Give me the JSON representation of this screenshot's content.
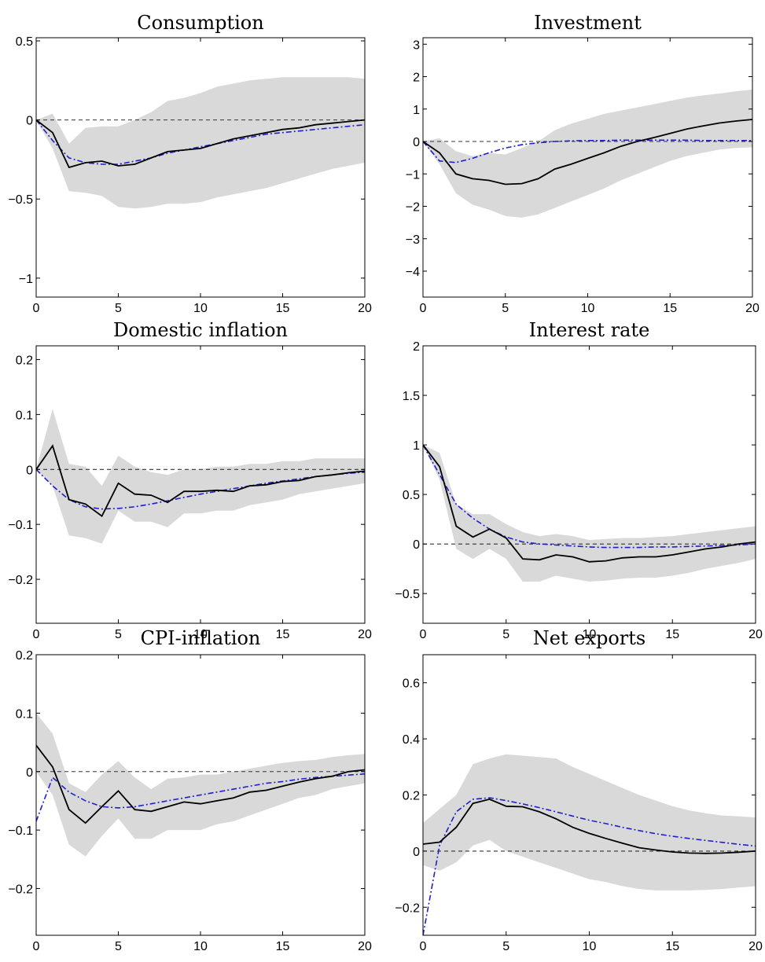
{
  "colors": {
    "band": "#d9d9d9",
    "median": "#000000",
    "model": "#1f1fcc",
    "zero_line": "#333333"
  },
  "chart_data": [
    {
      "type": "line",
      "title": "Consumption",
      "xlim": [
        0,
        20
      ],
      "ylim": [
        -1.12,
        0.52
      ],
      "xticks": [
        0,
        5,
        10,
        15,
        20
      ],
      "xtick_labels": [
        "0",
        "5",
        "10",
        "15",
        "20"
      ],
      "yticks": [
        0.5,
        0,
        -0.5,
        -1
      ],
      "ytick_labels": [
        "0.5",
        "0",
        "−0.5",
        "−1"
      ],
      "x": [
        0,
        1,
        2,
        3,
        4,
        5,
        6,
        7,
        8,
        9,
        10,
        11,
        12,
        13,
        14,
        15,
        16,
        17,
        18,
        19,
        20
      ],
      "band_lower": [
        0,
        -0.18,
        -0.45,
        -0.46,
        -0.48,
        -0.55,
        -0.56,
        -0.55,
        -0.53,
        -0.53,
        -0.52,
        -0.49,
        -0.47,
        -0.45,
        -0.43,
        -0.4,
        -0.37,
        -0.34,
        -0.31,
        -0.29,
        -0.27
      ],
      "band_upper": [
        0,
        0.04,
        -0.15,
        -0.05,
        -0.04,
        -0.04,
        0.0,
        0.05,
        0.12,
        0.14,
        0.17,
        0.21,
        0.23,
        0.25,
        0.26,
        0.27,
        0.27,
        0.27,
        0.27,
        0.27,
        0.26
      ],
      "median": [
        0,
        -0.08,
        -0.3,
        -0.27,
        -0.26,
        -0.29,
        -0.28,
        -0.24,
        -0.2,
        -0.19,
        -0.18,
        -0.15,
        -0.12,
        -0.1,
        -0.08,
        -0.06,
        -0.05,
        -0.03,
        -0.02,
        -0.01,
        0.0
      ],
      "model": [
        0,
        -0.13,
        -0.24,
        -0.27,
        -0.28,
        -0.28,
        -0.26,
        -0.24,
        -0.21,
        -0.19,
        -0.17,
        -0.15,
        -0.13,
        -0.11,
        -0.09,
        -0.08,
        -0.07,
        -0.06,
        -0.05,
        -0.04,
        -0.03
      ]
    },
    {
      "type": "line",
      "title": "Investment",
      "xlim": [
        0,
        20
      ],
      "ylim": [
        -4.8,
        3.2
      ],
      "xticks": [
        0,
        5,
        10,
        15,
        20
      ],
      "xtick_labels": [
        "0",
        "5",
        "10",
        "15",
        "20"
      ],
      "yticks": [
        3,
        2,
        1,
        0,
        -1,
        -2,
        -3,
        -4
      ],
      "ytick_labels": [
        "3",
        "2",
        "1",
        "0",
        "−1",
        "−2",
        "−3",
        "−4"
      ],
      "x": [
        0,
        1,
        2,
        3,
        4,
        5,
        6,
        7,
        8,
        9,
        10,
        11,
        12,
        13,
        14,
        15,
        16,
        17,
        18,
        19,
        20
      ],
      "band_lower": [
        0,
        -0.7,
        -1.6,
        -1.95,
        -2.1,
        -2.3,
        -2.35,
        -2.25,
        -2.05,
        -1.85,
        -1.65,
        -1.45,
        -1.2,
        -1.0,
        -0.8,
        -0.6,
        -0.45,
        -0.35,
        -0.25,
        -0.2,
        -0.18
      ],
      "band_upper": [
        0,
        0.1,
        -0.3,
        -0.45,
        -0.35,
        -0.4,
        -0.2,
        0.0,
        0.35,
        0.55,
        0.7,
        0.85,
        0.95,
        1.05,
        1.15,
        1.25,
        1.35,
        1.42,
        1.48,
        1.55,
        1.6
      ],
      "median": [
        0,
        -0.35,
        -1.0,
        -1.15,
        -1.2,
        -1.32,
        -1.3,
        -1.15,
        -0.85,
        -0.7,
        -0.52,
        -0.35,
        -0.15,
        0.0,
        0.12,
        0.25,
        0.38,
        0.48,
        0.57,
        0.63,
        0.68
      ],
      "model": [
        0,
        -0.6,
        -0.65,
        -0.52,
        -0.35,
        -0.2,
        -0.1,
        -0.04,
        0.0,
        0.02,
        0.03,
        0.03,
        0.04,
        0.04,
        0.04,
        0.04,
        0.04,
        0.03,
        0.03,
        0.03,
        0.03
      ]
    },
    {
      "type": "line",
      "title": "Domestic inflation",
      "xlim": [
        0,
        20
      ],
      "ylim": [
        -0.28,
        0.225
      ],
      "xticks": [
        0,
        5,
        10,
        15,
        20
      ],
      "xtick_labels": [
        "0",
        "5",
        "10",
        "15",
        "20"
      ],
      "yticks": [
        0.2,
        0.1,
        0,
        -0.1,
        -0.2
      ],
      "ytick_labels": [
        "0.2",
        "0.1",
        "0",
        "−0.1",
        "−0.2"
      ],
      "x": [
        0,
        1,
        2,
        3,
        4,
        5,
        6,
        7,
        8,
        9,
        10,
        11,
        12,
        13,
        14,
        15,
        16,
        17,
        18,
        19,
        20
      ],
      "band_lower": [
        0,
        -0.03,
        -0.12,
        -0.125,
        -0.135,
        -0.075,
        -0.095,
        -0.095,
        -0.105,
        -0.08,
        -0.08,
        -0.075,
        -0.075,
        -0.065,
        -0.06,
        -0.055,
        -0.045,
        -0.04,
        -0.035,
        -0.03,
        -0.025
      ],
      "band_upper": [
        0,
        0.11,
        0.01,
        0.005,
        -0.03,
        0.025,
        0.005,
        -0.005,
        -0.01,
        0.0,
        0.0,
        0.005,
        0.005,
        0.01,
        0.01,
        0.015,
        0.015,
        0.02,
        0.02,
        0.02,
        0.02
      ],
      "median": [
        0,
        0.043,
        -0.055,
        -0.063,
        -0.085,
        -0.025,
        -0.045,
        -0.047,
        -0.06,
        -0.04,
        -0.04,
        -0.038,
        -0.04,
        -0.03,
        -0.028,
        -0.022,
        -0.02,
        -0.013,
        -0.01,
        -0.006,
        -0.003
      ],
      "model": [
        0,
        -0.03,
        -0.055,
        -0.068,
        -0.072,
        -0.071,
        -0.068,
        -0.063,
        -0.057,
        -0.051,
        -0.045,
        -0.04,
        -0.035,
        -0.03,
        -0.025,
        -0.021,
        -0.017,
        -0.013,
        -0.01,
        -0.007,
        -0.005
      ]
    },
    {
      "type": "line",
      "title": "Interest rate",
      "xlim": [
        0,
        20
      ],
      "ylim": [
        -0.8,
        2.0
      ],
      "xticks": [
        0,
        5,
        10,
        15,
        20
      ],
      "xtick_labels": [
        "0",
        "5",
        "10",
        "15",
        "20"
      ],
      "yticks": [
        2,
        1.5,
        1,
        0.5,
        0,
        -0.5
      ],
      "ytick_labels": [
        "2",
        "1.5",
        "1",
        "0.5",
        "0",
        "−0.5"
      ],
      "x": [
        0,
        1,
        2,
        3,
        4,
        5,
        6,
        7,
        8,
        9,
        10,
        11,
        12,
        13,
        14,
        15,
        16,
        17,
        18,
        19,
        20
      ],
      "band_lower": [
        1.0,
        0.65,
        -0.05,
        -0.15,
        -0.05,
        -0.15,
        -0.38,
        -0.38,
        -0.32,
        -0.35,
        -0.38,
        -0.37,
        -0.35,
        -0.34,
        -0.34,
        -0.32,
        -0.29,
        -0.25,
        -0.22,
        -0.19,
        -0.15
      ],
      "band_upper": [
        1.0,
        0.92,
        0.4,
        0.3,
        0.3,
        0.2,
        0.12,
        0.08,
        0.1,
        0.08,
        0.04,
        0.05,
        0.06,
        0.06,
        0.07,
        0.08,
        0.1,
        0.12,
        0.14,
        0.16,
        0.18
      ],
      "median": [
        1.0,
        0.78,
        0.18,
        0.07,
        0.15,
        0.06,
        -0.15,
        -0.16,
        -0.11,
        -0.13,
        -0.18,
        -0.17,
        -0.14,
        -0.13,
        -0.13,
        -0.11,
        -0.08,
        -0.05,
        -0.03,
        0.0,
        0.02
      ],
      "model": [
        1.0,
        0.7,
        0.4,
        0.26,
        0.15,
        0.07,
        0.02,
        0.0,
        -0.01,
        -0.02,
        -0.03,
        -0.035,
        -0.035,
        -0.035,
        -0.03,
        -0.03,
        -0.025,
        -0.02,
        -0.015,
        -0.01,
        0.0
      ]
    },
    {
      "type": "line",
      "title": "CPI-inflation",
      "xlim": [
        0,
        20
      ],
      "ylim": [
        -0.28,
        0.2
      ],
      "xticks": [
        0,
        5,
        10,
        15,
        20
      ],
      "xtick_labels": [
        "0",
        "5",
        "10",
        "15",
        "20"
      ],
      "yticks": [
        0.2,
        0.1,
        0,
        -0.1,
        -0.2
      ],
      "ytick_labels": [
        "0.2",
        "0.1",
        "0",
        "−0.1",
        "−0.2"
      ],
      "x": [
        0,
        1,
        2,
        3,
        4,
        5,
        6,
        7,
        8,
        9,
        10,
        11,
        12,
        13,
        14,
        15,
        16,
        17,
        18,
        19,
        20
      ],
      "band_lower": [
        0.0,
        -0.04,
        -0.125,
        -0.145,
        -0.11,
        -0.08,
        -0.115,
        -0.115,
        -0.1,
        -0.1,
        -0.1,
        -0.09,
        -0.085,
        -0.075,
        -0.065,
        -0.055,
        -0.045,
        -0.04,
        -0.03,
        -0.025,
        -0.02
      ],
      "band_upper": [
        0.1,
        0.065,
        -0.02,
        -0.035,
        -0.005,
        0.018,
        -0.01,
        -0.03,
        -0.012,
        -0.01,
        -0.005,
        -0.005,
        0.0,
        0.005,
        0.01,
        0.015,
        0.018,
        0.02,
        0.025,
        0.028,
        0.03
      ],
      "median": [
        0.045,
        0.008,
        -0.065,
        -0.088,
        -0.06,
        -0.033,
        -0.065,
        -0.068,
        -0.06,
        -0.052,
        -0.055,
        -0.05,
        -0.045,
        -0.035,
        -0.032,
        -0.025,
        -0.018,
        -0.012,
        -0.008,
        0.0,
        0.003
      ],
      "model": [
        -0.085,
        -0.01,
        -0.035,
        -0.05,
        -0.06,
        -0.062,
        -0.06,
        -0.055,
        -0.05,
        -0.045,
        -0.04,
        -0.035,
        -0.03,
        -0.025,
        -0.02,
        -0.017,
        -0.013,
        -0.01,
        -0.008,
        -0.006,
        -0.004
      ]
    },
    {
      "type": "line",
      "title": "Net exports",
      "xlim": [
        0,
        20
      ],
      "ylim": [
        -0.3,
        0.7
      ],
      "xticks": [
        0,
        5,
        10,
        15,
        20
      ],
      "xtick_labels": [
        "0",
        "5",
        "10",
        "15",
        "20"
      ],
      "yticks": [
        0.6,
        0.4,
        0.2,
        0,
        -0.2
      ],
      "ytick_labels": [
        "0.6",
        "0.4",
        "0.2",
        "0",
        "−0.2"
      ],
      "x": [
        0,
        1,
        2,
        3,
        4,
        5,
        6,
        7,
        8,
        9,
        10,
        11,
        12,
        13,
        14,
        15,
        16,
        17,
        18,
        19,
        20
      ],
      "band_lower": [
        -0.05,
        -0.07,
        -0.04,
        0.02,
        0.04,
        0.0,
        -0.02,
        -0.04,
        -0.06,
        -0.08,
        -0.1,
        -0.11,
        -0.125,
        -0.135,
        -0.14,
        -0.14,
        -0.14,
        -0.138,
        -0.135,
        -0.13,
        -0.125
      ],
      "band_upper": [
        0.1,
        0.15,
        0.2,
        0.31,
        0.33,
        0.345,
        0.34,
        0.335,
        0.33,
        0.3,
        0.275,
        0.25,
        0.225,
        0.2,
        0.18,
        0.16,
        0.145,
        0.135,
        0.127,
        0.124,
        0.12
      ],
      "median": [
        0.025,
        0.032,
        0.085,
        0.17,
        0.185,
        0.16,
        0.158,
        0.14,
        0.115,
        0.085,
        0.063,
        0.045,
        0.028,
        0.012,
        0.004,
        -0.003,
        -0.007,
        -0.008,
        -0.007,
        -0.004,
        0.0
      ],
      "model": [
        -0.3,
        0.02,
        0.14,
        0.185,
        0.19,
        0.18,
        0.168,
        0.155,
        0.14,
        0.125,
        0.11,
        0.098,
        0.085,
        0.073,
        0.062,
        0.053,
        0.045,
        0.038,
        0.031,
        0.024,
        0.018
      ]
    }
  ]
}
